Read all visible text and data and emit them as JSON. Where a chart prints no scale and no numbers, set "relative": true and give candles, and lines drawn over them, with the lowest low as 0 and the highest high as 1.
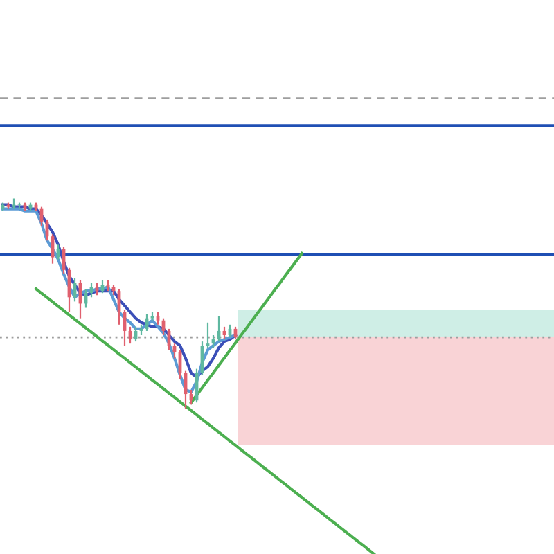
{
  "chart_data": {
    "type": "candlestick",
    "relative": true,
    "categories": [
      null,
      null,
      null,
      null,
      null,
      null,
      null,
      null,
      null,
      null,
      null,
      null,
      null,
      null,
      null,
      null,
      null,
      null,
      null,
      null,
      null,
      null,
      null,
      null,
      null,
      null,
      null,
      null,
      null,
      null,
      null,
      null,
      null,
      null,
      null,
      null,
      null,
      null,
      null,
      null,
      null,
      null,
      null,
      null,
      null,
      null,
      null,
      null,
      null,
      null,
      null,
      null,
      null,
      null,
      null,
      null,
      null,
      null,
      null,
      null,
      null,
      null,
      null,
      null,
      null,
      null,
      null,
      null,
      null,
      null,
      null,
      null,
      null,
      null,
      null,
      null,
      null,
      null,
      null,
      null,
      null,
      null,
      null,
      null,
      null,
      null,
      null,
      null,
      null,
      null,
      null,
      null,
      null,
      null,
      null,
      null,
      null,
      null,
      null,
      null
    ],
    "ohlc": [
      [
        0.95,
        0.98,
        0.94,
        0.97
      ],
      [
        0.97,
        0.98,
        0.95,
        0.96
      ],
      [
        0.96,
        1.0,
        0.95,
        0.97
      ],
      [
        0.97,
        0.98,
        0.95,
        0.97
      ],
      [
        0.97,
        0.98,
        0.94,
        0.95
      ],
      [
        0.95,
        0.98,
        0.94,
        0.97
      ],
      [
        0.97,
        0.98,
        0.94,
        0.95
      ],
      [
        0.95,
        0.96,
        0.87,
        0.89
      ],
      [
        0.89,
        0.9,
        0.8,
        0.82
      ],
      [
        0.82,
        0.83,
        0.69,
        0.72
      ],
      [
        0.72,
        0.78,
        0.71,
        0.76
      ],
      [
        0.76,
        0.77,
        0.64,
        0.66
      ],
      [
        0.66,
        0.67,
        0.46,
        0.53
      ],
      [
        0.53,
        0.62,
        0.51,
        0.6
      ],
      [
        0.6,
        0.61,
        0.43,
        0.5
      ],
      [
        0.5,
        0.57,
        0.48,
        0.55
      ],
      [
        0.55,
        0.6,
        0.53,
        0.58
      ],
      [
        0.58,
        0.6,
        0.54,
        0.56
      ],
      [
        0.56,
        0.61,
        0.55,
        0.59
      ],
      [
        0.59,
        0.61,
        0.56,
        0.58
      ],
      [
        0.58,
        0.59,
        0.54,
        0.56
      ],
      [
        0.56,
        0.57,
        0.4,
        0.46
      ],
      [
        0.46,
        0.47,
        0.3,
        0.37
      ],
      [
        0.37,
        0.39,
        0.31,
        0.33
      ],
      [
        0.33,
        0.39,
        0.32,
        0.37
      ],
      [
        0.37,
        0.4,
        0.35,
        0.38
      ],
      [
        0.38,
        0.45,
        0.37,
        0.43
      ],
      [
        0.43,
        0.46,
        0.42,
        0.44
      ],
      [
        0.44,
        0.46,
        0.4,
        0.42
      ],
      [
        0.42,
        0.43,
        0.35,
        0.37
      ],
      [
        0.37,
        0.38,
        0.28,
        0.3
      ],
      [
        0.3,
        0.31,
        0.24,
        0.27
      ],
      [
        0.27,
        0.28,
        0.14,
        0.17
      ],
      [
        0.17,
        0.18,
        0.0,
        0.07
      ],
      [
        0.07,
        0.09,
        0.02,
        0.04
      ],
      [
        0.04,
        0.19,
        0.03,
        0.17
      ],
      [
        0.17,
        0.32,
        0.16,
        0.3
      ],
      [
        0.3,
        0.41,
        0.29,
        0.31
      ],
      [
        0.31,
        0.35,
        0.29,
        0.33
      ],
      [
        0.33,
        0.44,
        0.32,
        0.37
      ],
      [
        0.37,
        0.39,
        0.33,
        0.35
      ],
      [
        0.35,
        0.4,
        0.34,
        0.38
      ],
      [
        0.38,
        0.39,
        0.33,
        0.34
      ],
      null,
      null,
      null,
      null,
      null,
      null,
      null,
      null,
      null,
      null,
      null,
      null,
      null,
      null,
      null,
      null,
      null,
      null,
      null,
      null,
      null,
      null,
      null,
      null,
      null,
      null,
      null,
      null,
      null,
      null,
      null,
      null,
      null,
      null,
      null,
      null,
      null,
      null,
      null,
      null,
      null,
      null,
      null,
      null,
      null,
      null,
      null,
      null,
      null,
      null,
      null,
      null,
      null,
      null,
      null,
      null,
      null
    ],
    "colors": [
      "#5fb8a0",
      "#e0606e",
      "#5fb8a0",
      "#5fb8a0",
      "#e0606e",
      "#5fb8a0",
      "#e0606e",
      "#e0606e",
      "#e0606e",
      "#e0606e",
      "#5fb8a0",
      "#e0606e",
      "#e0606e",
      "#5fb8a0",
      "#e0606e",
      "#5fb8a0",
      "#5fb8a0",
      "#e0606e",
      "#5fb8a0",
      "#e0606e",
      "#e0606e",
      "#e0606e",
      "#e0606e",
      "#e0606e",
      "#5fb8a0",
      "#5fb8a0",
      "#5fb8a0",
      "#5fb8a0",
      "#e0606e",
      "#e0606e",
      "#e0606e",
      "#e0606e",
      "#e0606e",
      "#e0606e",
      "#e0606e",
      "#5fb8a0",
      "#5fb8a0",
      "#5fb8a0",
      "#5fb8a0",
      "#5fb8a0",
      "#e0606e",
      "#5fb8a0",
      "#e0606e",
      null,
      null,
      null,
      null,
      null,
      null,
      null,
      null,
      null,
      null,
      null,
      null,
      null,
      null,
      null,
      null,
      null,
      null,
      null,
      null,
      null,
      null,
      null,
      null,
      null,
      null,
      null,
      null,
      null,
      null,
      null,
      null,
      null,
      null,
      null,
      null,
      null,
      null,
      null,
      null,
      null,
      null,
      null,
      null,
      null,
      null,
      null,
      null,
      null,
      null,
      null,
      null,
      null,
      null,
      null,
      null,
      null
    ],
    "series": [
      {
        "type": "line",
        "color": "#3b4fb8",
        "values": [
          0.97,
          0.97,
          0.96,
          0.96,
          0.96,
          0.95,
          0.95,
          0.92,
          0.88,
          0.84,
          0.78,
          0.7,
          0.63,
          0.59,
          0.55,
          0.54,
          0.55,
          0.56,
          0.56,
          0.56,
          0.56,
          0.52,
          0.49,
          0.46,
          0.43,
          0.41,
          0.4,
          0.39,
          0.39,
          0.38,
          0.35,
          0.32,
          0.3,
          0.24,
          0.17,
          0.15,
          0.18,
          0.2,
          0.24,
          0.29,
          0.32,
          0.33,
          0.35,
          null,
          null,
          null,
          null,
          null,
          null,
          null,
          null,
          null,
          null,
          null,
          null,
          null,
          null,
          null,
          null,
          null,
          null,
          null,
          null,
          null,
          null,
          null,
          null,
          null,
          null,
          null,
          null,
          null,
          null,
          null,
          null,
          null,
          null,
          null,
          null,
          null,
          null,
          null,
          null,
          null,
          null,
          null,
          null,
          null,
          null,
          null,
          null,
          null,
          null,
          null,
          null,
          null,
          null,
          null,
          null,
          null
        ]
      },
      {
        "type": "line",
        "color": "#5b9bd5",
        "values": [
          0.95,
          0.95,
          0.95,
          0.95,
          0.94,
          0.94,
          0.94,
          0.88,
          0.8,
          0.76,
          0.71,
          0.64,
          0.58,
          0.53,
          0.55,
          0.56,
          0.56,
          0.57,
          0.57,
          0.58,
          0.52,
          0.46,
          0.43,
          0.41,
          0.38,
          0.38,
          0.4,
          0.42,
          0.39,
          0.36,
          0.31,
          0.24,
          0.16,
          0.09,
          0.08,
          0.13,
          0.22,
          0.28,
          0.3,
          0.32,
          0.33,
          0.34,
          0.35,
          null,
          null,
          null,
          null,
          null,
          null,
          null,
          null,
          null,
          null,
          null,
          null,
          null,
          null,
          null,
          null,
          null,
          null,
          null,
          null,
          null,
          null,
          null,
          null,
          null,
          null,
          null,
          null,
          null,
          null,
          null,
          null,
          null,
          null,
          null,
          null,
          null,
          null,
          null,
          null,
          null,
          null,
          null,
          null,
          null,
          null,
          null,
          null,
          null,
          null,
          null,
          null,
          null,
          null,
          null,
          null,
          null
        ]
      },
      {
        "type": "line",
        "color": "#4caf50",
        "values": [
          null,
          null,
          null,
          null,
          null,
          null,
          0.57,
          0.549,
          0.529,
          0.508,
          0.487,
          0.467,
          0.446,
          0.425,
          0.405,
          0.384,
          0.364,
          0.343,
          0.322,
          0.302,
          0.281,
          0.26,
          0.24,
          0.219,
          0.198,
          0.178,
          0.157,
          0.136,
          0.116,
          0.095,
          0.074,
          0.054,
          0.033,
          0.012,
          -0.008,
          -0.029,
          -0.05,
          -0.07,
          -0.091,
          -0.111,
          -0.132,
          -0.153,
          -0.173,
          -0.194,
          -0.215,
          -0.235,
          -0.256,
          -0.277,
          -0.297,
          -0.318,
          -0.339,
          -0.359,
          -0.38,
          -0.401,
          -0.421,
          -0.442,
          -0.463,
          -0.483,
          -0.504,
          -0.525,
          -0.545,
          -0.566,
          -0.587,
          -0.607,
          -0.628,
          -0.648,
          -0.669,
          -0.69,
          null,
          null,
          null,
          null,
          null,
          null,
          null,
          null,
          null,
          null,
          null,
          null,
          null,
          null,
          null,
          null,
          null,
          null,
          null,
          null,
          null,
          null,
          null,
          null,
          null,
          null,
          null,
          null,
          null,
          null,
          null,
          null
        ]
      },
      {
        "type": "line",
        "color": "#4caf50",
        "values": [
          null,
          null,
          null,
          null,
          null,
          null,
          null,
          null,
          null,
          null,
          null,
          null,
          null,
          null,
          null,
          null,
          null,
          null,
          null,
          null,
          null,
          null,
          null,
          null,
          null,
          null,
          null,
          null,
          null,
          null,
          null,
          null,
          null,
          null,
          0.029,
          0.065,
          0.1,
          0.136,
          0.171,
          0.207,
          0.242,
          0.278,
          0.313,
          0.349,
          0.384,
          0.42,
          0.455,
          0.491,
          0.526,
          0.562,
          0.597,
          0.633,
          0.668,
          0.704,
          0.739,
          null,
          null,
          null,
          null,
          null,
          null,
          null,
          null,
          null,
          null,
          null,
          null,
          null,
          null,
          null,
          null,
          null,
          null,
          null,
          null,
          null,
          null,
          null,
          null,
          null,
          null,
          null,
          null,
          null,
          null,
          null,
          null,
          null,
          null,
          null,
          null,
          null,
          null,
          null,
          null,
          null,
          null,
          null,
          null,
          null
        ]
      }
    ],
    "bands": [
      {
        "axis": "y",
        "from": 0.34,
        "to": 0.47,
        "color": "#cfeee6"
      },
      {
        "axis": "y",
        "from": -0.17,
        "to": 0.34,
        "color": "#f9d3d6"
      }
    ],
    "ref_lines": [
      {
        "axis": "y",
        "value": 1.477,
        "color": "#9e9e9e",
        "line_style": "dashed"
      },
      {
        "axis": "y",
        "value": 1.346,
        "color": "#1f4fb4",
        "line_style": "solid"
      },
      {
        "axis": "y",
        "value": 0.732,
        "color": "#1f4fb4",
        "line_style": "solid"
      },
      {
        "axis": "y",
        "value": 0.34,
        "color": "#9e9e9e",
        "line_style": "dotted"
      }
    ]
  }
}
